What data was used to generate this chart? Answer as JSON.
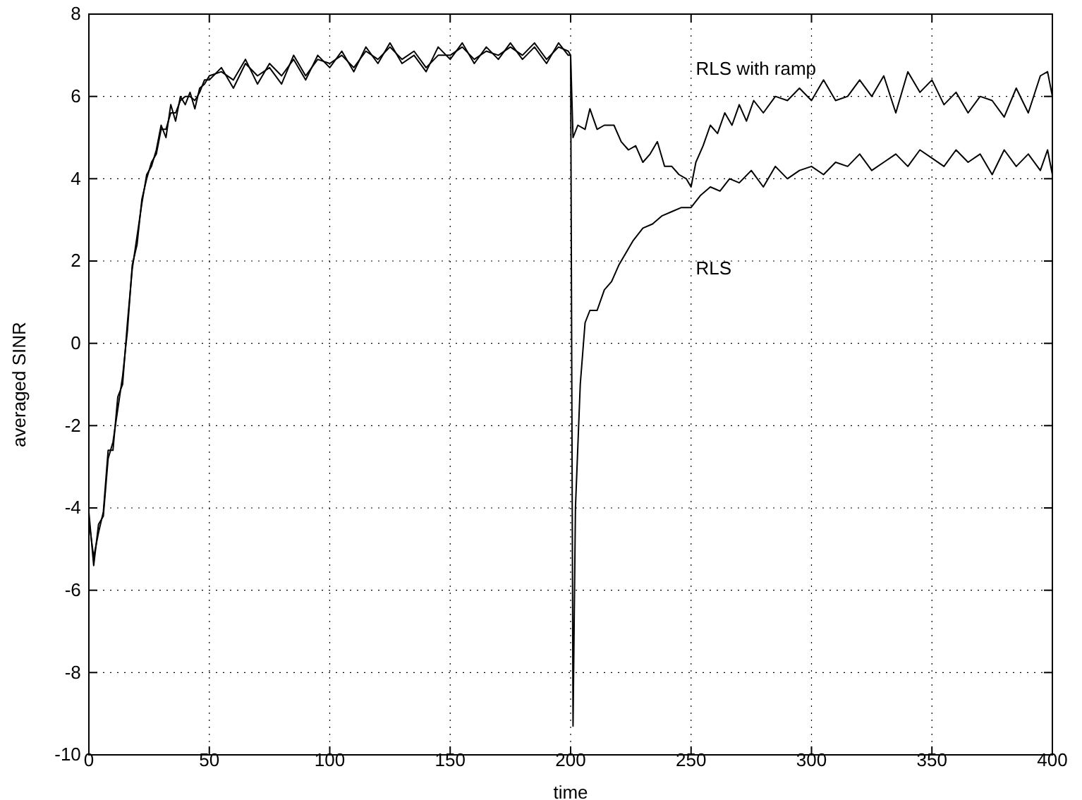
{
  "chart_data": {
    "type": "line",
    "xlabel": "time",
    "ylabel": "averaged SINR",
    "xlim": [
      0,
      400
    ],
    "ylim": [
      -10,
      8
    ],
    "xticks": [
      0,
      50,
      100,
      150,
      200,
      250,
      300,
      350,
      400
    ],
    "yticks": [
      -10,
      -8,
      -6,
      -4,
      -2,
      0,
      2,
      4,
      6,
      8
    ],
    "grid": true,
    "legend": false,
    "line_style": "solid",
    "marker": "none",
    "series": [
      {
        "name": "RLS with ramp",
        "color": "#000000",
        "x": [
          0,
          2,
          4,
          6,
          8,
          10,
          12,
          14,
          16,
          18,
          20,
          22,
          24,
          26,
          28,
          30,
          32,
          34,
          36,
          38,
          40,
          42,
          44,
          46,
          48,
          50,
          55,
          60,
          65,
          70,
          75,
          80,
          85,
          90,
          95,
          100,
          105,
          110,
          115,
          120,
          125,
          130,
          135,
          140,
          145,
          150,
          155,
          160,
          165,
          170,
          175,
          180,
          185,
          190,
          195,
          199,
          200,
          201,
          203,
          206,
          208,
          211,
          214,
          218,
          221,
          224,
          227,
          230,
          233,
          236,
          239,
          242,
          245,
          248,
          250,
          252,
          255,
          258,
          261,
          264,
          267,
          270,
          273,
          276,
          280,
          285,
          290,
          295,
          300,
          305,
          310,
          315,
          320,
          325,
          330,
          335,
          340,
          345,
          350,
          355,
          360,
          365,
          370,
          375,
          380,
          385,
          390,
          395,
          398,
          400
        ],
        "values": [
          -4.3,
          -5.2,
          -4.6,
          -4.1,
          -2.6,
          -2.6,
          -1.3,
          -1.0,
          0.5,
          1.8,
          2.6,
          3.4,
          4.1,
          4.3,
          4.7,
          5.3,
          5.0,
          5.8,
          5.4,
          6.0,
          5.8,
          6.1,
          5.7,
          6.2,
          6.3,
          6.5,
          6.6,
          6.4,
          6.9,
          6.3,
          6.8,
          6.5,
          6.9,
          6.4,
          7.0,
          6.7,
          7.1,
          6.6,
          7.2,
          6.8,
          7.3,
          6.8,
          7.0,
          6.6,
          7.2,
          6.9,
          7.3,
          6.8,
          7.2,
          6.9,
          7.3,
          6.9,
          7.2,
          6.8,
          7.3,
          7.0,
          7.0,
          5.0,
          5.3,
          5.2,
          5.7,
          5.2,
          5.3,
          5.3,
          4.9,
          4.7,
          4.8,
          4.4,
          4.6,
          4.9,
          4.3,
          4.3,
          4.1,
          4.0,
          3.8,
          4.4,
          4.8,
          5.3,
          5.1,
          5.6,
          5.3,
          5.8,
          5.4,
          5.9,
          5.6,
          6.0,
          5.9,
          6.2,
          5.9,
          6.4,
          5.9,
          6.0,
          6.4,
          6.0,
          6.5,
          5.6,
          6.6,
          6.1,
          6.4,
          5.8,
          6.1,
          5.6,
          6.0,
          5.9,
          5.5,
          6.2,
          5.6,
          6.5,
          6.6,
          6.0
        ]
      },
      {
        "name": "RLS",
        "color": "#000000",
        "x": [
          0,
          2,
          4,
          6,
          8,
          10,
          12,
          14,
          16,
          18,
          20,
          22,
          24,
          26,
          28,
          30,
          32,
          34,
          36,
          38,
          40,
          42,
          44,
          46,
          48,
          50,
          55,
          60,
          65,
          70,
          75,
          80,
          85,
          90,
          95,
          100,
          105,
          110,
          115,
          120,
          125,
          130,
          135,
          140,
          145,
          150,
          155,
          160,
          165,
          170,
          175,
          180,
          185,
          190,
          195,
          199,
          200,
          201,
          202,
          204,
          206,
          208,
          211,
          214,
          217,
          220,
          223,
          226,
          230,
          234,
          238,
          242,
          246,
          250,
          254,
          258,
          262,
          266,
          270,
          275,
          280,
          285,
          290,
          295,
          300,
          305,
          310,
          315,
          320,
          325,
          330,
          335,
          340,
          345,
          350,
          355,
          360,
          365,
          370,
          375,
          380,
          385,
          390,
          395,
          398,
          400
        ],
        "values": [
          -4.1,
          -5.4,
          -4.4,
          -4.2,
          -2.8,
          -2.4,
          -1.6,
          -0.8,
          0.3,
          1.9,
          2.4,
          3.5,
          4.0,
          4.4,
          4.6,
          5.2,
          5.2,
          5.6,
          5.6,
          5.9,
          6.0,
          6.0,
          5.9,
          6.1,
          6.4,
          6.4,
          6.7,
          6.2,
          6.8,
          6.5,
          6.7,
          6.3,
          7.0,
          6.5,
          6.9,
          6.8,
          7.0,
          6.7,
          7.1,
          6.9,
          7.2,
          6.9,
          7.1,
          6.7,
          7.0,
          7.0,
          7.2,
          6.9,
          7.1,
          7.0,
          7.2,
          7.0,
          7.3,
          6.9,
          7.2,
          7.1,
          7.0,
          -9.3,
          -4.0,
          -1.0,
          0.5,
          0.8,
          0.8,
          1.3,
          1.5,
          1.9,
          2.2,
          2.5,
          2.8,
          2.9,
          3.1,
          3.2,
          3.3,
          3.3,
          3.6,
          3.8,
          3.7,
          4.0,
          3.9,
          4.2,
          3.8,
          4.3,
          4.0,
          4.2,
          4.3,
          4.1,
          4.4,
          4.3,
          4.6,
          4.2,
          4.4,
          4.6,
          4.3,
          4.7,
          4.5,
          4.3,
          4.7,
          4.4,
          4.6,
          4.1,
          4.7,
          4.3,
          4.6,
          4.2,
          4.7,
          4.1
        ]
      }
    ]
  }
}
